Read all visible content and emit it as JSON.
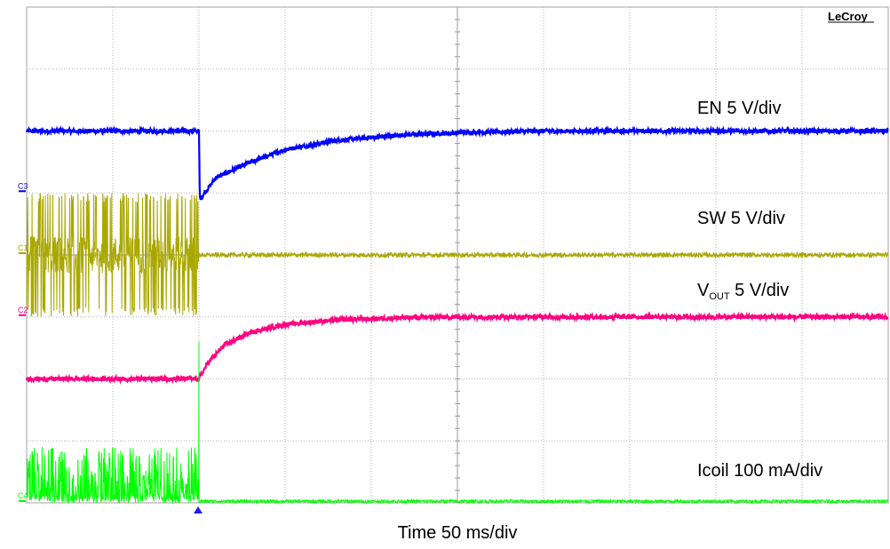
{
  "brand": "LeCroy",
  "time_label": "Time 50 ms/div",
  "chart_data": {
    "type": "line",
    "title": "",
    "grid": true,
    "divisions": {
      "x": 10,
      "y": 8
    },
    "x_unit": "ms",
    "x_per_div": 50,
    "xlim": [
      0,
      500
    ],
    "trigger_time": 100,
    "series": [
      {
        "channel": "C3",
        "label": "EN 5 V/div",
        "color": "#0000ff",
        "ground_div": 5.0,
        "points": [
          [
            0,
            1.0
          ],
          [
            100,
            1.0
          ],
          [
            100.5,
            -0.1
          ],
          [
            110,
            0.25
          ],
          [
            130,
            0.5
          ],
          [
            150,
            0.7
          ],
          [
            180,
            0.85
          ],
          [
            220,
            0.94
          ],
          [
            260,
            0.98
          ],
          [
            300,
            1.0
          ],
          [
            500,
            1.0
          ]
        ]
      },
      {
        "channel": "C1",
        "label": "SW 5 V/div",
        "color": "#aaa800",
        "ground_div": 4.0,
        "burst_high": 1.0,
        "burst_low": -1.0,
        "points": [
          [
            0,
            0
          ],
          [
            500,
            0
          ]
        ]
      },
      {
        "channel": "C2",
        "label": "V_OUT 5 V/div",
        "label_main": "V",
        "label_sub": "OUT",
        "label_unit": " 5 V/div",
        "color": "#ff0080",
        "ground_div": 3.0,
        "points": [
          [
            0,
            -1.0
          ],
          [
            100,
            -1.0
          ],
          [
            105,
            -0.75
          ],
          [
            115,
            -0.45
          ],
          [
            130,
            -0.25
          ],
          [
            150,
            -0.12
          ],
          [
            180,
            -0.05
          ],
          [
            220,
            -0.01
          ],
          [
            260,
            0.0
          ],
          [
            500,
            0.0
          ]
        ]
      },
      {
        "channel": "C4",
        "label": "Icoil 100 mA/div",
        "color": "#00ff00",
        "ground_div": 0.0,
        "burst_high": 0.9,
        "points": [
          [
            0,
            0
          ],
          [
            500,
            0
          ]
        ]
      }
    ]
  }
}
